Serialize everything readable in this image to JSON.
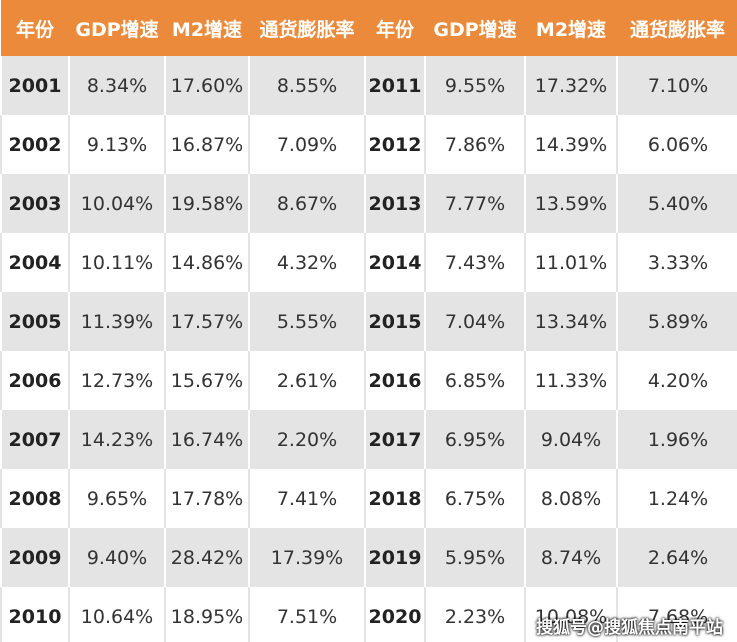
{
  "table": {
    "header": [
      "年份",
      "GDP增速",
      "M2增速",
      "通货膨胀率",
      "年份",
      "GDP增速",
      "M2增速",
      "通货膨胀率"
    ],
    "rows": [
      [
        "2001",
        "8.34%",
        "17.60%",
        "8.55%",
        "2011",
        "9.55%",
        "17.32%",
        "7.10%"
      ],
      [
        "2002",
        "9.13%",
        "16.87%",
        "7.09%",
        "2012",
        "7.86%",
        "14.39%",
        "6.06%"
      ],
      [
        "2003",
        "10.04%",
        "19.58%",
        "8.67%",
        "2013",
        "7.77%",
        "13.59%",
        "5.40%"
      ],
      [
        "2004",
        "10.11%",
        "14.86%",
        "4.32%",
        "2014",
        "7.43%",
        "11.01%",
        "3.33%"
      ],
      [
        "2005",
        "11.39%",
        "17.57%",
        "5.55%",
        "2015",
        "7.04%",
        "13.34%",
        "5.89%"
      ],
      [
        "2006",
        "12.73%",
        "15.67%",
        "2.61%",
        "2016",
        "6.85%",
        "11.33%",
        "4.20%"
      ],
      [
        "2007",
        "14.23%",
        "16.74%",
        "2.20%",
        "2017",
        "6.95%",
        "9.04%",
        "1.96%"
      ],
      [
        "2008",
        "9.65%",
        "17.78%",
        "7.41%",
        "2018",
        "6.75%",
        "8.08%",
        "1.24%"
      ],
      [
        "2009",
        "9.40%",
        "28.42%",
        "17.39%",
        "2019",
        "5.95%",
        "8.74%",
        "2.64%"
      ],
      [
        "2010",
        "10.64%",
        "18.95%",
        "7.51%",
        "2020",
        "2.23%",
        "10.08%",
        "7.68%"
      ]
    ]
  },
  "watermark": "搜狐号@搜狐焦点南平站"
}
